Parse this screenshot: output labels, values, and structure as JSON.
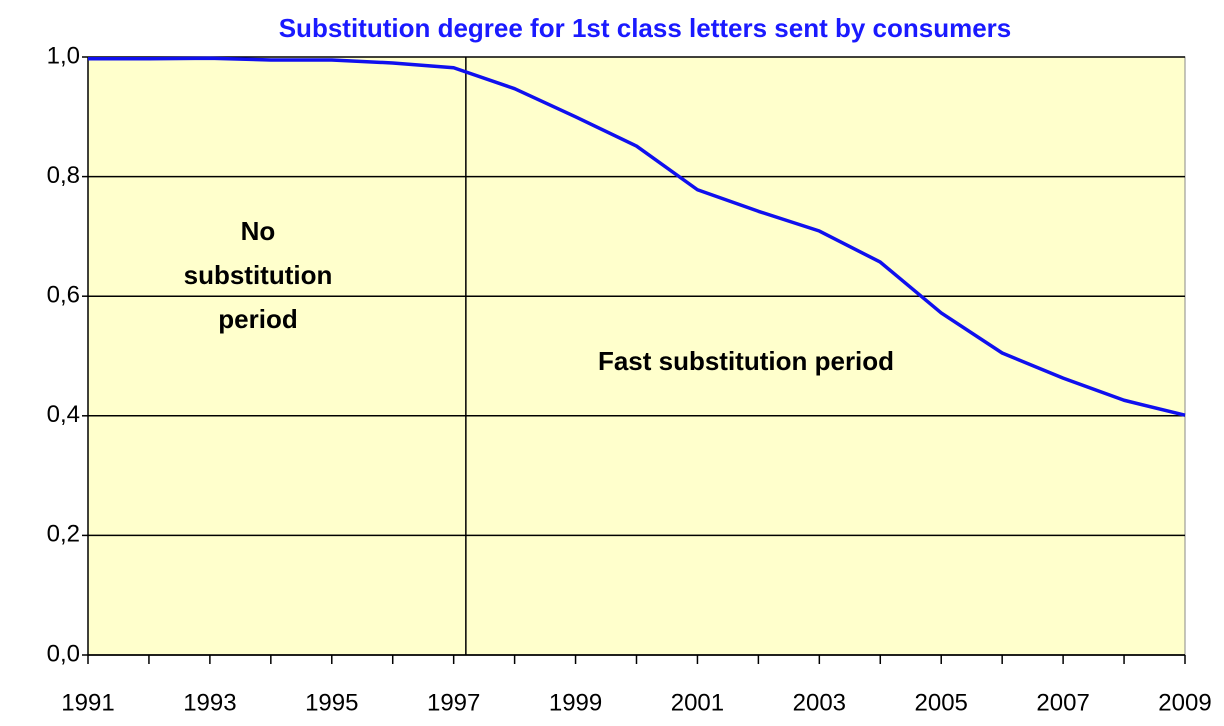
{
  "chart_data": {
    "type": "line",
    "title": "Substitution degree for 1st class letters sent by consumers",
    "categories": [
      "1991",
      null,
      "1993",
      null,
      "1995",
      null,
      "1997",
      null,
      "1999",
      null,
      "2001",
      null,
      "2003",
      null,
      "2005",
      null,
      "2007",
      null,
      "2009"
    ],
    "series": [
      {
        "name": "Substitution degree",
        "color": "#1010ee",
        "values": [
          0.997,
          0.997,
          0.998,
          0.995,
          0.995,
          0.99,
          0.982,
          0.947,
          0.9,
          0.851,
          0.778,
          0.742,
          0.709,
          0.657,
          0.572,
          0.505,
          0.463,
          0.426,
          0.401
        ]
      }
    ],
    "ylim": [
      0,
      1
    ],
    "yticks": [
      {
        "value": 0,
        "label": "0,0"
      },
      {
        "value": 0.2,
        "label": "0,2"
      },
      {
        "value": 0.4,
        "label": "0,4"
      },
      {
        "value": 0.6,
        "label": "0,6"
      },
      {
        "value": 0.8,
        "label": "0,8"
      },
      {
        "value": 1,
        "label": "1,0"
      }
    ],
    "grid": true,
    "plot_background": "#ffffcc",
    "divider_x": 6.2,
    "annotations": [
      {
        "lines": [
          "No",
          "substitution",
          "period"
        ]
      },
      {
        "lines": [
          "Fast substitution period"
        ]
      }
    ]
  }
}
